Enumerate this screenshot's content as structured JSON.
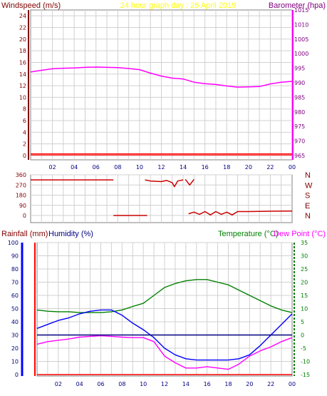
{
  "header": {
    "windspeed_label": "Windspeed (m/s)",
    "title": "24 hour graph day : 26 April 2019",
    "barometer_label": "Barometer (hpa)"
  },
  "footer_header": {
    "rainfall_label": "Rainfall (mm)",
    "humidity_label": "Humidity (%)",
    "temperature_label": "Temperature (°C)",
    "dewpoint_label": "Dew Point (°C)"
  },
  "colors": {
    "windspeed": "#ff0000",
    "gust": "#ff0000",
    "barometer": "#ff00ff",
    "wind_direction": "#cc0000",
    "rainfall": "#ff0000",
    "humidity": "#0000ff",
    "temperature": "#008000",
    "dewpoint": "#ff00ff",
    "zero_line": "#000080",
    "frame": "#808080",
    "title": "#ffff00",
    "windspeed_label": "#800000",
    "barometer_label": "#800080",
    "rainfall_label": "#800000",
    "humidity_label": "#000080",
    "temperature_label": "#008000",
    "dewpoint_label": "#ff00ff"
  },
  "chart_data": [
    {
      "type": "line",
      "id": "wind-pressure",
      "x_ticks": [
        "02",
        "04",
        "06",
        "08",
        "10",
        "12",
        "14",
        "16",
        "18",
        "20",
        "22",
        "00"
      ],
      "y_left": {
        "label": "Windspeed (m/s)",
        "ticks": [
          "0",
          "2",
          "4",
          "6",
          "8",
          "10",
          "12",
          "14",
          "16",
          "18",
          "20",
          "22",
          "24"
        ],
        "ylim": [
          0,
          25
        ]
      },
      "y_right": {
        "label": "Barometer (hpa)",
        "ticks": [
          "965",
          "970",
          "975",
          "980",
          "985",
          "990",
          "995",
          "1000",
          "1005",
          "1010",
          "1015"
        ],
        "ylim": [
          965,
          1015
        ]
      },
      "series": [
        {
          "id": "barometer",
          "axis": "right",
          "x": [
            0,
            1,
            2,
            3,
            4,
            5,
            6,
            7,
            8,
            9,
            10,
            11,
            12,
            13,
            14,
            15,
            16,
            17,
            18,
            19,
            20,
            21,
            22,
            23,
            24
          ],
          "y": [
            993.7,
            994.3,
            994.8,
            995.0,
            995.1,
            995.3,
            995.4,
            995.3,
            995.2,
            994.9,
            994.5,
            993.3,
            992.3,
            991.6,
            991.3,
            990.2,
            989.7,
            989.4,
            988.9,
            988.5,
            988.6,
            988.7,
            989.6,
            990.2,
            990.5
          ]
        },
        {
          "id": "windspeed",
          "axis": "left",
          "x": [
            0,
            24
          ],
          "y": [
            0.1,
            0.1
          ]
        },
        {
          "id": "gust",
          "axis": "left",
          "x": [
            0,
            24
          ],
          "y": [
            0.3,
            0.3
          ]
        }
      ]
    },
    {
      "type": "line",
      "id": "wind-direction",
      "x_ticks": [
        "02",
        "04",
        "06",
        "08",
        "10",
        "12",
        "14",
        "16",
        "18",
        "20",
        "22",
        "00"
      ],
      "y_left": {
        "ticks": [
          "0",
          "90",
          "180",
          "270",
          "360"
        ],
        "ylim": [
          0,
          360
        ]
      },
      "y_right": {
        "ticks": [
          "N",
          "E",
          "S",
          "W",
          "N"
        ]
      },
      "segments": [
        {
          "x": [
            0,
            7.6
          ],
          "y": [
            315,
            315
          ]
        },
        {
          "x": [
            7.6,
            10.7
          ],
          "y": [
            0,
            0
          ]
        },
        {
          "x": [
            10.5,
            11,
            12,
            12.5,
            13,
            13.2,
            13.5,
            14
          ],
          "y": [
            315,
            305,
            300,
            310,
            290,
            255,
            305,
            315
          ]
        },
        {
          "x": [
            14.2,
            14.6,
            15
          ],
          "y": [
            320,
            270,
            320
          ]
        },
        {
          "x": [
            14.5,
            15,
            15.5,
            16,
            16.5,
            17,
            17.5,
            18,
            18.5,
            19,
            20,
            22,
            24
          ],
          "y": [
            15,
            30,
            10,
            35,
            5,
            35,
            10,
            30,
            5,
            35,
            35,
            38,
            40
          ]
        }
      ]
    },
    {
      "type": "line",
      "id": "temp-humidity",
      "x_ticks": [
        "02",
        "04",
        "06",
        "08",
        "10",
        "12",
        "14",
        "16",
        "18",
        "20",
        "22",
        "00"
      ],
      "y_left": {
        "label": "Rainfall (mm) / Humidity (%)",
        "ticks": [
          "0",
          "10",
          "20",
          "30",
          "40",
          "50",
          "60",
          "70",
          "80",
          "90",
          "100"
        ],
        "ylim": [
          0,
          100
        ]
      },
      "y_right": {
        "label": "Temperature (°C) / Dew Point (°C)",
        "ticks": [
          "-15",
          "-10",
          "-5",
          "0",
          "5",
          "10",
          "15",
          "20",
          "25",
          "30",
          "35"
        ],
        "ylim": [
          -15,
          35
        ]
      },
      "series": [
        {
          "id": "temperature",
          "axis": "right",
          "x": [
            0,
            1,
            2,
            3,
            4,
            5,
            6,
            7,
            8,
            9,
            10,
            11,
            12,
            13,
            14,
            15,
            16,
            17,
            18,
            19,
            20,
            21,
            22,
            23,
            24
          ],
          "y": [
            9.5,
            9.0,
            8.8,
            8.8,
            8.5,
            8.5,
            8.5,
            8.8,
            9.5,
            10.8,
            12.0,
            15.0,
            18.0,
            19.5,
            20.5,
            21.0,
            21.0,
            20.0,
            19.0,
            17.0,
            15.0,
            13.0,
            11.0,
            9.5,
            8.5
          ]
        },
        {
          "id": "humidity",
          "axis": "left",
          "x": [
            0,
            1,
            2,
            3,
            4,
            5,
            6,
            7,
            8,
            9,
            10,
            11,
            12,
            13,
            14,
            15,
            16,
            17,
            18,
            19,
            20,
            21,
            22,
            23,
            24
          ],
          "y": [
            35,
            38,
            41,
            43,
            46,
            48,
            49,
            49,
            45,
            39,
            34,
            28,
            20,
            15,
            12,
            11,
            11,
            11,
            11,
            12,
            15,
            22,
            30,
            38,
            46
          ]
        },
        {
          "id": "dewpoint",
          "axis": "right",
          "x": [
            0,
            1,
            2,
            3,
            4,
            5,
            6,
            7,
            8,
            9,
            10,
            11,
            12,
            13,
            14,
            15,
            16,
            17,
            18,
            19,
            20,
            21,
            22,
            23,
            24
          ],
          "y": [
            -3.5,
            -2.5,
            -2.0,
            -1.5,
            -0.8,
            -0.5,
            -0.3,
            -0.5,
            -0.8,
            -1.0,
            -1.0,
            -2.5,
            -8.0,
            -10.5,
            -12.5,
            -12.5,
            -12.0,
            -12.5,
            -13.0,
            -11.0,
            -8.0,
            -6.0,
            -4.5,
            -2.5,
            -1.0
          ]
        },
        {
          "id": "rainfall",
          "axis": "left",
          "x": [
            0,
            24
          ],
          "y": [
            0,
            0
          ]
        },
        {
          "id": "zero_temp",
          "axis": "right",
          "x": [
            0,
            24
          ],
          "y": [
            0,
            0
          ]
        }
      ]
    }
  ]
}
